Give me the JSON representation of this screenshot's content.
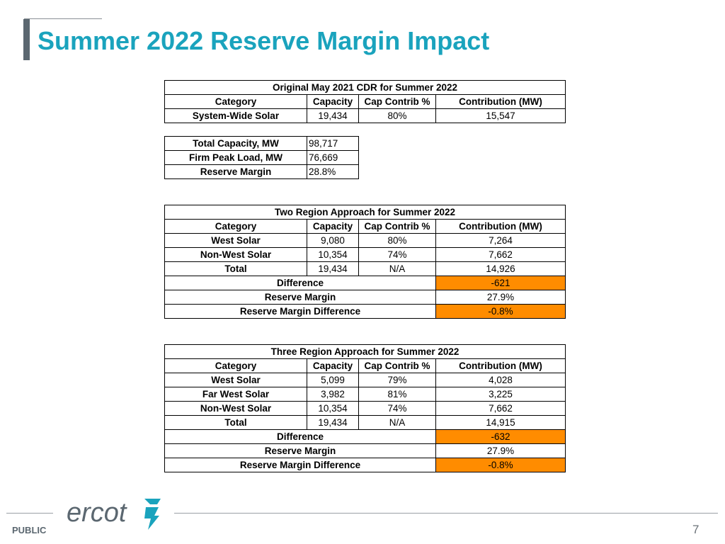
{
  "slide": {
    "title": "Summer 2022 Reserve Margin Impact",
    "footer_label": "PUBLIC",
    "page_number": "7",
    "logo_text": "ercot",
    "colors": {
      "title": "#1aa3bd",
      "highlight": "#ff8c00",
      "accent_bar": "#5b6770"
    }
  },
  "table_original": {
    "title": "Original May 2021 CDR for Summer 2022",
    "headers": [
      "Category",
      "Capacity",
      "Cap Contrib %",
      "Contribution (MW)"
    ],
    "rows": [
      [
        "System-Wide Solar",
        "19,434",
        "80%",
        "15,547"
      ]
    ]
  },
  "table_totals": {
    "rows": [
      [
        "Total Capacity, MW",
        "98,717"
      ],
      [
        "Firm Peak Load, MW",
        "76,669"
      ],
      [
        "Reserve Margin",
        "28.8%"
      ]
    ]
  },
  "table_two_region": {
    "title": "Two Region Approach for Summer 2022",
    "headers": [
      "Category",
      "Capacity",
      "Cap Contrib %",
      "Contribution (MW)"
    ],
    "rows": [
      [
        "West Solar",
        "9,080",
        "80%",
        "7,264"
      ],
      [
        "Non-West Solar",
        "10,354",
        "74%",
        "7,662"
      ],
      [
        "Total",
        "19,434",
        "N/A",
        "14,926"
      ]
    ],
    "summary": [
      [
        "Difference",
        "-621"
      ],
      [
        "Reserve Margin",
        "27.9%"
      ],
      [
        "Reserve Margin Difference",
        "-0.8%"
      ]
    ]
  },
  "table_three_region": {
    "title": "Three Region Approach for Summer 2022",
    "headers": [
      "Category",
      "Capacity",
      "Cap Contrib %",
      "Contribution (MW)"
    ],
    "rows": [
      [
        "West Solar",
        "5,099",
        "79%",
        "4,028"
      ],
      [
        "Far West Solar",
        "3,982",
        "81%",
        "3,225"
      ],
      [
        "Non-West Solar",
        "10,354",
        "74%",
        "7,662"
      ],
      [
        "Total",
        "19,434",
        "N/A",
        "14,915"
      ]
    ],
    "summary": [
      [
        "Difference",
        "-632"
      ],
      [
        "Reserve Margin",
        "27.9%"
      ],
      [
        "Reserve Margin Difference",
        "-0.8%"
      ]
    ]
  }
}
